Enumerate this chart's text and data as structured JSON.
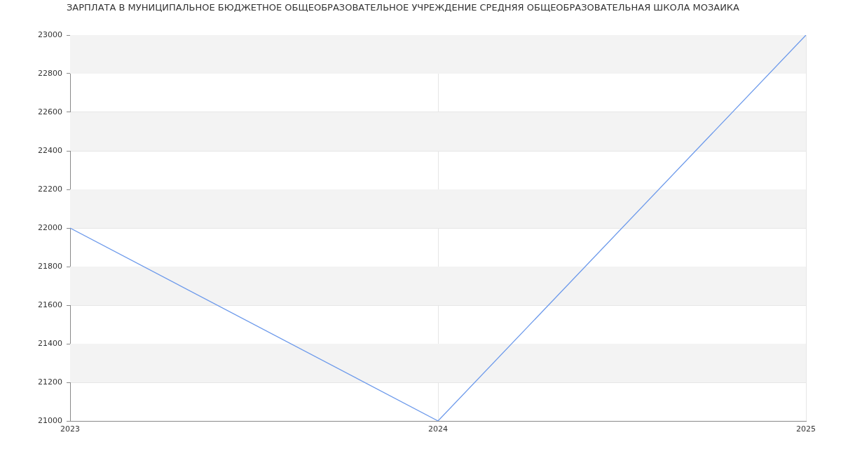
{
  "chart_data": {
    "type": "line",
    "title": "ЗАРПЛАТА В МУНИЦИПАЛЬНОЕ БЮДЖЕТНОЕ ОБЩЕОБРАЗОВАТЕЛЬНОЕ УЧРЕЖДЕНИЕ СРЕДНЯЯ ОБЩЕОБРАЗОВАТЕЛЬНАЯ ШКОЛА МОЗАИКА",
    "x": [
      2023,
      2024,
      2025
    ],
    "values": [
      22000,
      21000,
      23000
    ],
    "color": "#6d9aeb",
    "xlim": [
      2023,
      2025
    ],
    "xticks": [
      2023,
      2024,
      2025
    ],
    "ylim": [
      21000,
      23000
    ],
    "yticks": [
      21000,
      21200,
      21400,
      21600,
      21800,
      22000,
      22200,
      22400,
      22600,
      22800,
      23000
    ],
    "grid": true,
    "marker": "none"
  }
}
